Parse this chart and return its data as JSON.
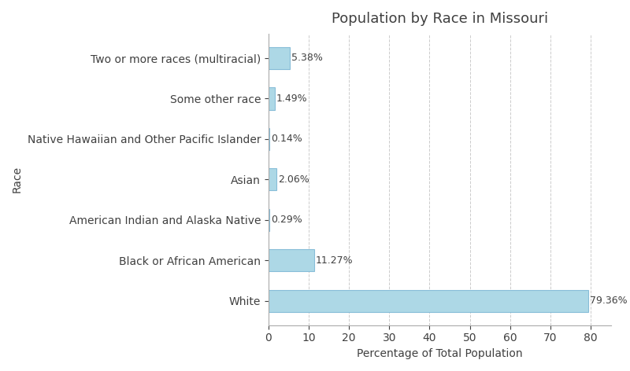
{
  "title": "Population by Race in Missouri",
  "xlabel": "Percentage of Total Population",
  "ylabel": "Race",
  "categories": [
    "White",
    "Black or African American",
    "American Indian and Alaska Native",
    "Asian",
    "Native Hawaiian and Other Pacific Islander",
    "Some other race",
    "Two or more races (multiracial)"
  ],
  "values": [
    79.36,
    11.27,
    0.29,
    2.06,
    0.14,
    1.49,
    5.38
  ],
  "labels": [
    "79.36%",
    "11.27%",
    "0.29%",
    "2.06%",
    "0.14%",
    "1.49%",
    "5.38%"
  ],
  "bar_color": "#add8e6",
  "bar_edgecolor": "#87bdd8",
  "background_color": "#ffffff",
  "grid_color": "#cccccc",
  "text_color": "#404040",
  "xlim": [
    0,
    85
  ],
  "xticks": [
    0,
    10,
    20,
    30,
    40,
    50,
    60,
    70,
    80
  ],
  "title_fontsize": 13,
  "label_fontsize": 10,
  "tick_fontsize": 10,
  "value_fontsize": 9,
  "bar_height": 0.55
}
